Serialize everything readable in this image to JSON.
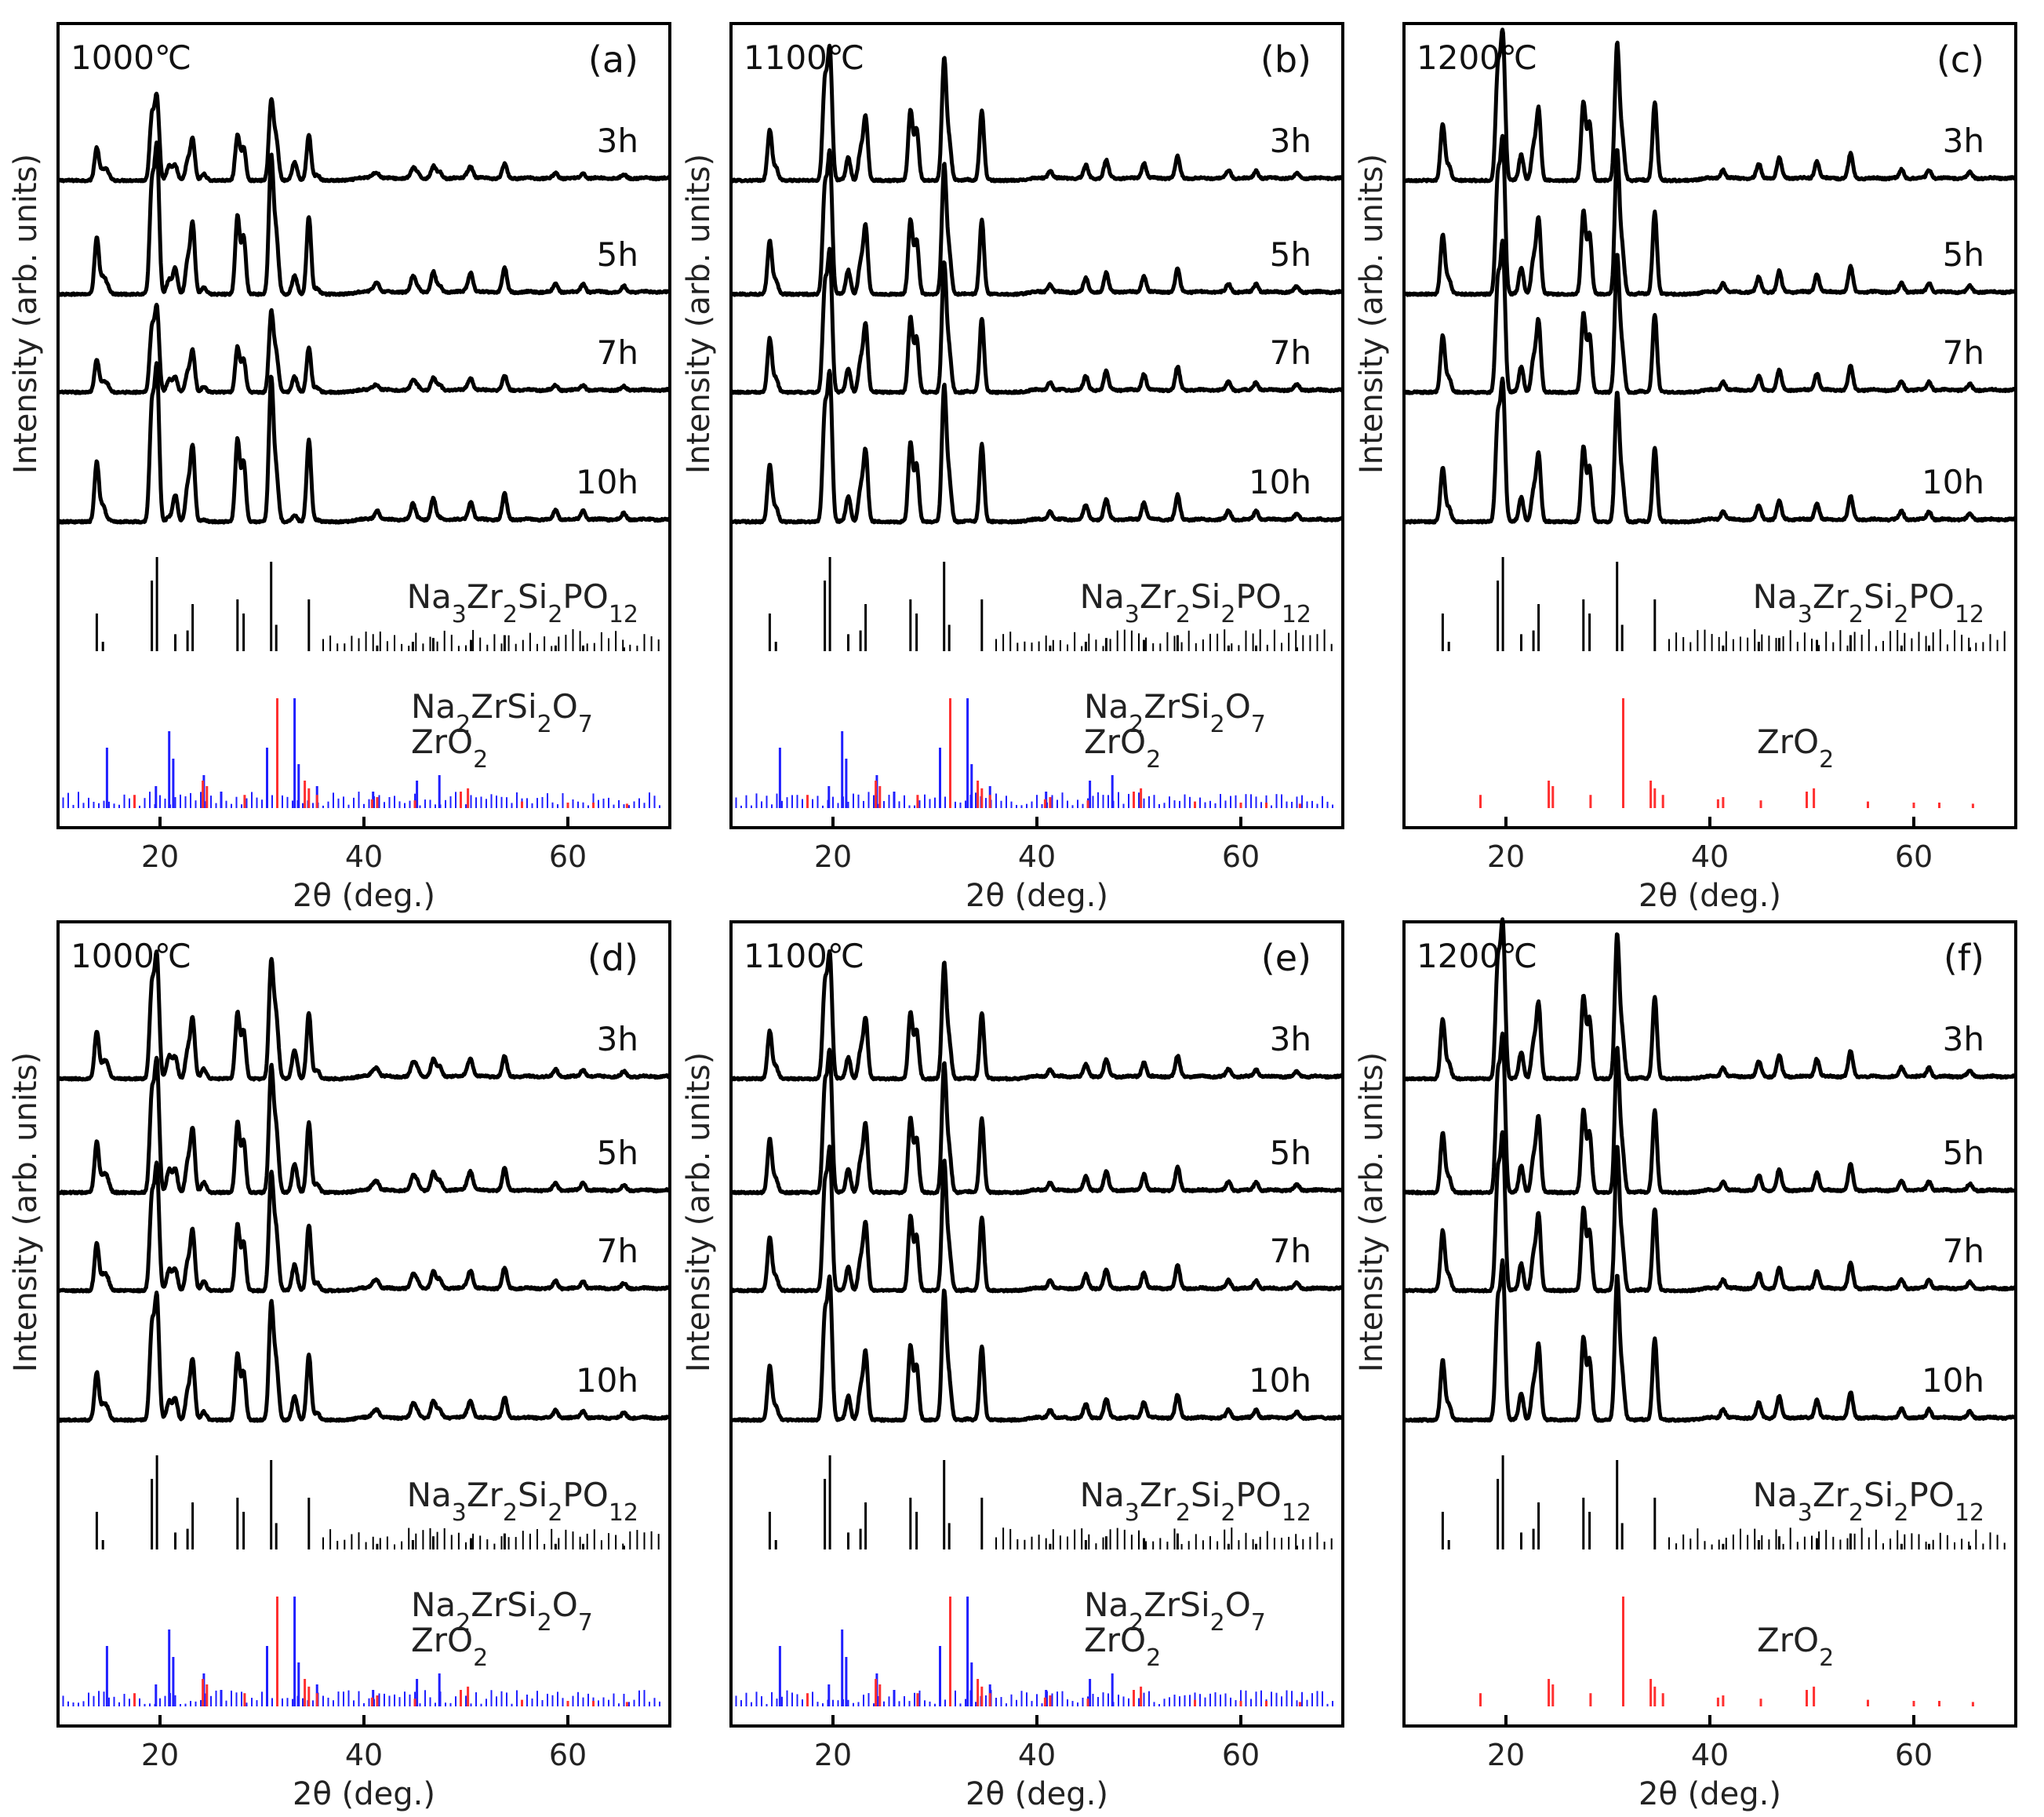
{
  "chart_data": {
    "type": "line",
    "layout": "2x3 grid",
    "x_range": [
      10,
      70
    ],
    "x_ticks": [
      "20",
      "40",
      "60"
    ],
    "xlabel": "2θ (deg.)",
    "ylabel": "Intensity (arb. units)",
    "colors": {
      "trace": "#000000",
      "ref_main": "#000000",
      "ref_na2zrsi2o7": "#1f1fff",
      "ref_zro2": "#ff3030"
    },
    "main_phase_peaks": [
      {
        "pos": 13.8,
        "h": 0.4
      },
      {
        "pos": 14.4,
        "h": 0.1
      },
      {
        "pos": 19.2,
        "h": 0.75
      },
      {
        "pos": 19.7,
        "h": 1.0
      },
      {
        "pos": 21.5,
        "h": 0.18
      },
      {
        "pos": 22.7,
        "h": 0.22
      },
      {
        "pos": 23.2,
        "h": 0.5
      },
      {
        "pos": 27.6,
        "h": 0.55
      },
      {
        "pos": 28.2,
        "h": 0.4
      },
      {
        "pos": 30.9,
        "h": 0.95
      },
      {
        "pos": 31.4,
        "h": 0.28
      },
      {
        "pos": 34.6,
        "h": 0.55
      },
      {
        "pos": 41.3,
        "h": 0.06
      },
      {
        "pos": 44.8,
        "h": 0.1
      },
      {
        "pos": 46.8,
        "h": 0.14
      },
      {
        "pos": 50.5,
        "h": 0.12
      },
      {
        "pos": 53.8,
        "h": 0.17
      },
      {
        "pos": 58.8,
        "h": 0.06
      },
      {
        "pos": 61.5,
        "h": 0.06
      },
      {
        "pos": 65.5,
        "h": 0.04
      }
    ],
    "panels": [
      {
        "id": "a",
        "label": "(a)",
        "temperature": "1000℃",
        "series": [
          {
            "name": "3h",
            "scale": 0.55,
            "impurity": 0.35
          },
          {
            "name": "5h",
            "scale": 0.95,
            "impurity": 0.35
          },
          {
            "name": "7h",
            "scale": 0.55,
            "impurity": 0.3
          },
          {
            "name": "10h",
            "scale": 1.0,
            "impurity": 0.12
          }
        ],
        "reference_main": "Na3Zr2Si2PO12",
        "reference_secondary": [
          "Na2ZrSi2O7",
          "ZrO2"
        ]
      },
      {
        "id": "b",
        "label": "(b)",
        "temperature": "1100℃",
        "series": [
          {
            "name": "3h",
            "scale": 0.85,
            "impurity": 0.02
          },
          {
            "name": "5h",
            "scale": 0.9,
            "impurity": 0.02
          },
          {
            "name": "7h",
            "scale": 0.9,
            "impurity": 0.02
          },
          {
            "name": "10h",
            "scale": 0.95,
            "impurity": 0.02
          }
        ],
        "reference_main": "Na3Zr2Si2PO12",
        "reference_secondary": [
          "Na2ZrSi2O7",
          "ZrO2"
        ]
      },
      {
        "id": "c",
        "label": "(c)",
        "temperature": "1200℃",
        "series": [
          {
            "name": "3h",
            "scale": 0.95,
            "impurity": 0.02
          },
          {
            "name": "5h",
            "scale": 1.0,
            "impurity": 0.02
          },
          {
            "name": "7h",
            "scale": 0.95,
            "impurity": 0.02
          },
          {
            "name": "10h",
            "scale": 0.9,
            "impurity": 0.02
          }
        ],
        "reference_main": "Na3Zr2Si2PO12",
        "reference_secondary": [
          "ZrO2"
        ]
      },
      {
        "id": "d",
        "label": "(d)",
        "temperature": "1000℃",
        "series": [
          {
            "name": "3h",
            "scale": 0.8,
            "impurity": 0.55
          },
          {
            "name": "5h",
            "scale": 0.85,
            "impurity": 0.55
          },
          {
            "name": "7h",
            "scale": 0.8,
            "impurity": 0.5
          },
          {
            "name": "10h",
            "scale": 0.8,
            "impurity": 0.45
          }
        ],
        "reference_main": "Na3Zr2Si2PO12",
        "reference_secondary": [
          "Na2ZrSi2O7",
          "ZrO2"
        ]
      },
      {
        "id": "e",
        "label": "(e)",
        "temperature": "1100℃",
        "series": [
          {
            "name": "3h",
            "scale": 0.8,
            "impurity": 0.02
          },
          {
            "name": "5h",
            "scale": 0.9,
            "impurity": 0.02
          },
          {
            "name": "7h",
            "scale": 0.9,
            "impurity": 0.02
          },
          {
            "name": "10h",
            "scale": 0.9,
            "impurity": 0.02
          }
        ],
        "reference_main": "Na3Zr2Si2PO12",
        "reference_secondary": [
          "Na2ZrSi2O7",
          "ZrO2"
        ]
      },
      {
        "id": "f",
        "label": "(f)",
        "temperature": "1200℃",
        "series": [
          {
            "name": "3h",
            "scale": 1.0,
            "impurity": 0.02
          },
          {
            "name": "5h",
            "scale": 1.0,
            "impurity": 0.02
          },
          {
            "name": "7h",
            "scale": 1.0,
            "impurity": 0.02
          },
          {
            "name": "10h",
            "scale": 1.0,
            "impurity": 0.02
          }
        ],
        "reference_main": "Na3Zr2Si2PO12",
        "reference_secondary": [
          "ZrO2"
        ]
      }
    ]
  }
}
